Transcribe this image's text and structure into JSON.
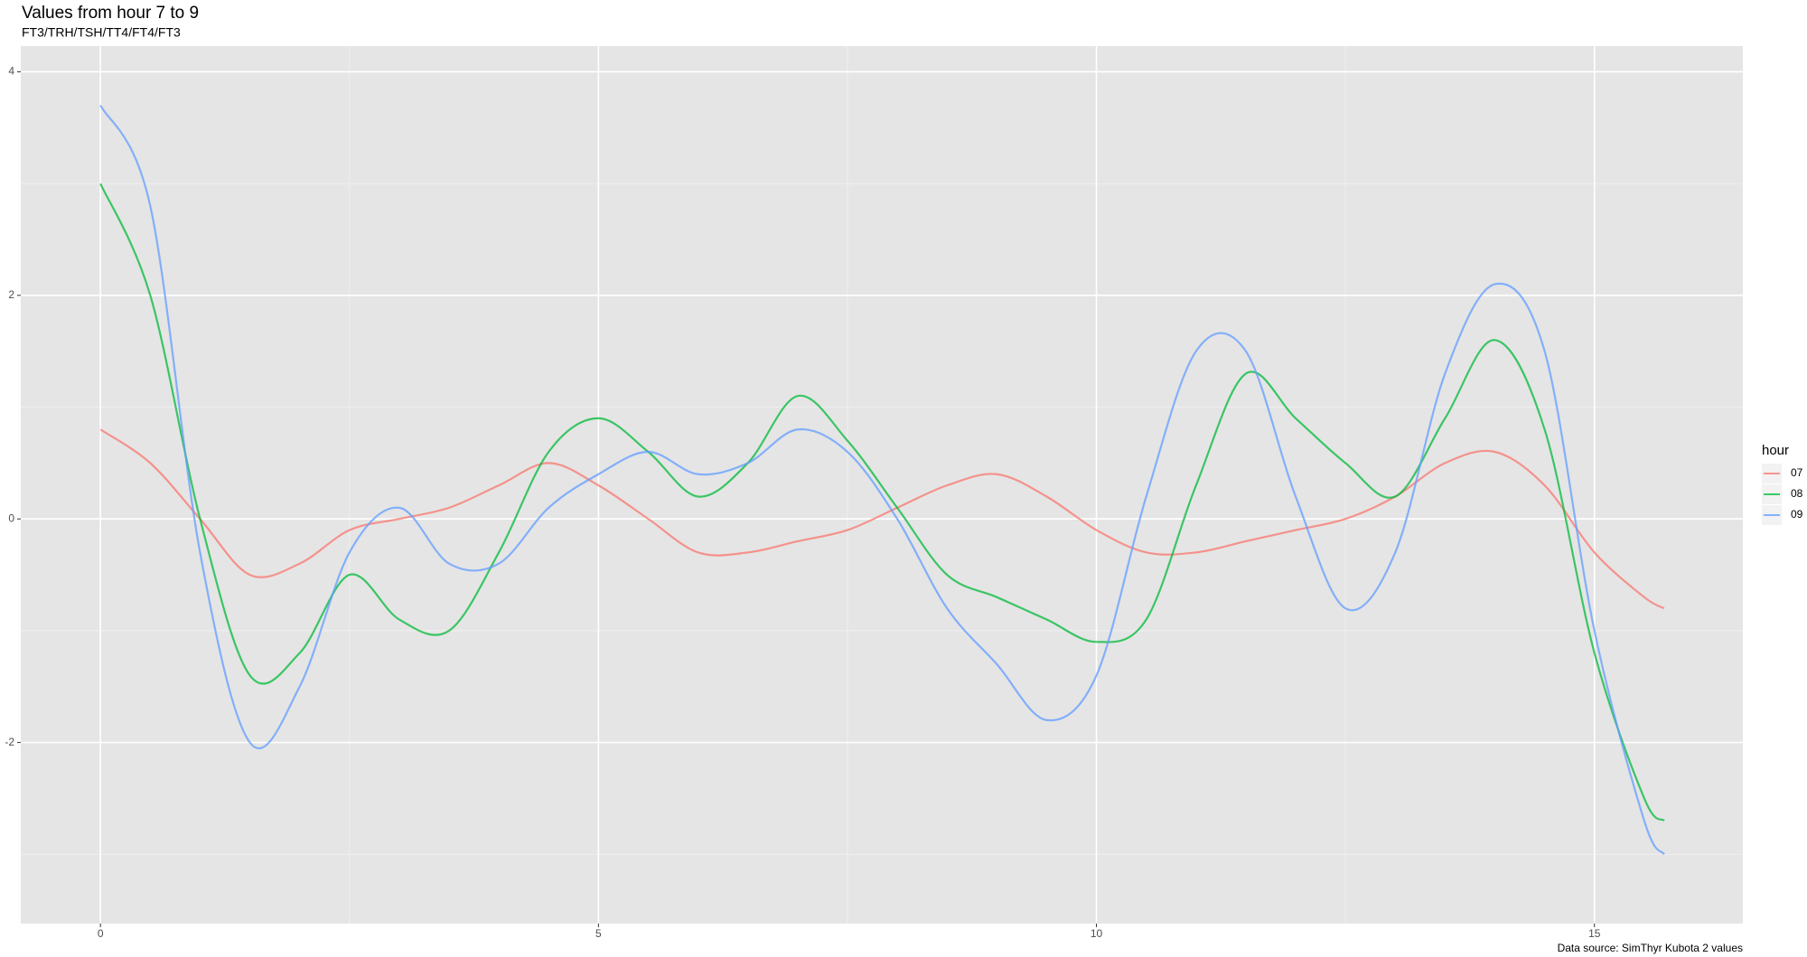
{
  "chart_data": {
    "type": "line",
    "title": "Values from hour 7 to 9",
    "subtitle": "FT3/TRH/TSH/TT4/FT4/FT3",
    "caption": "Data source: SimThyr Kubota 2 values",
    "legend_title": "hour",
    "legend": "right",
    "grid": true,
    "x": [
      0,
      0.5,
      1,
      1.5,
      2,
      2.5,
      3,
      3.5,
      4,
      4.5,
      5,
      5.5,
      6,
      6.5,
      7,
      7.5,
      8,
      8.5,
      9,
      9.5,
      10,
      10.5,
      11,
      11.5,
      12,
      12.5,
      13,
      13.5,
      14,
      14.5,
      15,
      15.5,
      15.7
    ],
    "series": [
      {
        "name": "07",
        "color": "#F8766D",
        "values": [
          0.8,
          0.5,
          0,
          -0.5,
          -0.4,
          -0.1,
          0,
          0.1,
          0.3,
          0.5,
          0.3,
          0,
          -0.3,
          -0.3,
          -0.2,
          -0.1,
          0.1,
          0.3,
          0.4,
          0.2,
          -0.1,
          -0.3,
          -0.3,
          -0.2,
          -0.1,
          0,
          0.2,
          0.5,
          0.6,
          0.3,
          -0.3,
          -0.7,
          -0.8
        ]
      },
      {
        "name": "08",
        "color": "#00BA38",
        "values": [
          3.0,
          2.0,
          0,
          -1.4,
          -1.2,
          -0.5,
          -0.9,
          -1.0,
          -0.3,
          0.6,
          0.9,
          0.6,
          0.2,
          0.5,
          1.1,
          0.7,
          0.1,
          -0.5,
          -0.7,
          -0.9,
          -1.1,
          -0.9,
          0.3,
          1.3,
          0.9,
          0.5,
          0.2,
          0.9,
          1.6,
          0.8,
          -1.2,
          -2.5,
          -2.7
        ]
      },
      {
        "name": "09",
        "color": "#619CFF",
        "values": [
          3.7,
          2.8,
          -0.3,
          -2.0,
          -1.5,
          -0.3,
          0.1,
          -0.4,
          -0.4,
          0.1,
          0.4,
          0.6,
          0.4,
          0.5,
          0.8,
          0.6,
          0,
          -0.8,
          -1.3,
          -1.8,
          -1.4,
          0.2,
          1.5,
          1.5,
          0.2,
          -0.8,
          -0.3,
          1.3,
          2.1,
          1.5,
          -1.0,
          -2.7,
          -3.0
        ]
      }
    ],
    "xlim": [
      -0.8,
      16.49
    ],
    "ylim": [
      -3.62,
      4.23
    ],
    "xticks": [
      0,
      5,
      10,
      15
    ],
    "yticks": [
      -2,
      0,
      2,
      4
    ],
    "xminor": [
      2.5,
      7.5,
      12.5
    ],
    "yminor": [
      -3,
      -1,
      1,
      3
    ]
  }
}
